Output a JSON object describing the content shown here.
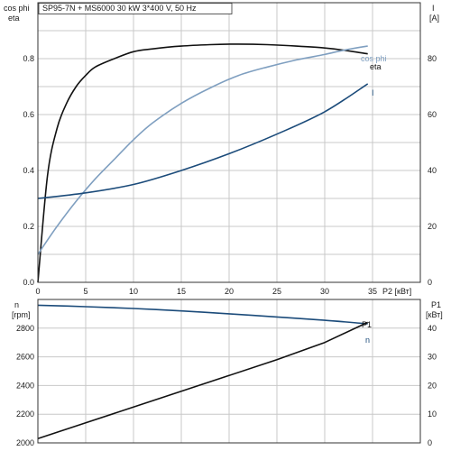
{
  "title": "SP95-7N + MS6000   30 kW   3*400 V, 50 Hz",
  "colors": {
    "eta": "#111111",
    "cos_phi": "#7f9fc0",
    "current": "#1b4b7a",
    "speed": "#1b4b7a",
    "p1": "#111111",
    "grid": "#c8c8c8",
    "frame": "#333333"
  },
  "chart_data": [
    {
      "type": "line",
      "title": "SP95-7N + MS6000   30 kW   3*400 V, 50 Hz",
      "xlabel": "P2 [кВт]",
      "ylabel_left": [
        "cos phi",
        "eta"
      ],
      "ylabel_right": [
        "I",
        "[A]"
      ],
      "xlim": [
        0,
        40
      ],
      "ylim_left": [
        0,
        1
      ],
      "ylim_right": [
        0,
        100
      ],
      "x_ticks": [
        "0",
        "5",
        "10",
        "15",
        "20",
        "25",
        "30",
        "35"
      ],
      "y_ticks_left": [
        "0.0",
        "0.2",
        "0.4",
        "0.6",
        "0.8"
      ],
      "y_ticks_right": [
        "0",
        "20",
        "40",
        "60",
        "80"
      ],
      "grid": true,
      "series": [
        {
          "name": "eta",
          "axis": "left",
          "x": [
            0,
            1,
            2,
            3,
            4,
            5,
            6,
            8,
            10,
            12,
            15,
            18,
            21,
            24,
            27,
            30,
            32,
            34.5
          ],
          "y": [
            0.0,
            0.38,
            0.55,
            0.64,
            0.7,
            0.74,
            0.77,
            0.8,
            0.825,
            0.835,
            0.845,
            0.85,
            0.852,
            0.85,
            0.845,
            0.838,
            0.83,
            0.817
          ]
        },
        {
          "name": "cos phi",
          "axis": "left",
          "x": [
            0,
            2,
            4,
            6,
            8,
            10,
            12,
            15,
            18,
            21,
            24,
            27,
            30,
            32,
            34.5
          ],
          "y": [
            0.1,
            0.2,
            0.29,
            0.37,
            0.44,
            0.51,
            0.57,
            0.64,
            0.695,
            0.74,
            0.77,
            0.795,
            0.815,
            0.83,
            0.845
          ]
        },
        {
          "name": "I",
          "axis": "right",
          "x": [
            0,
            5,
            10,
            15,
            20,
            25,
            30,
            34.5
          ],
          "y": [
            30,
            32,
            35,
            40,
            46,
            53,
            61,
            71
          ]
        }
      ]
    },
    {
      "type": "line",
      "ylabel_left": [
        "n",
        "[rpm]"
      ],
      "ylabel_right": [
        "P1",
        "[кВт]"
      ],
      "xlim": [
        0,
        40
      ],
      "ylim_left": [
        2000,
        3000
      ],
      "ylim_right": [
        0,
        50
      ],
      "y_ticks_left": [
        "2000",
        "2200",
        "2400",
        "2600",
        "2800"
      ],
      "y_ticks_right": [
        "0",
        "10",
        "20",
        "30",
        "40"
      ],
      "grid": true,
      "series": [
        {
          "name": "n",
          "axis": "left",
          "x": [
            0,
            5,
            10,
            15,
            20,
            25,
            30,
            34.5
          ],
          "y": [
            2960,
            2950,
            2937,
            2920,
            2900,
            2878,
            2855,
            2830
          ]
        },
        {
          "name": "P1",
          "axis": "right",
          "x": [
            0,
            5,
            10,
            15,
            20,
            25,
            30,
            34.5
          ],
          "y": [
            1.5,
            7,
            12.5,
            18,
            23.5,
            29,
            35,
            42
          ]
        }
      ]
    }
  ]
}
